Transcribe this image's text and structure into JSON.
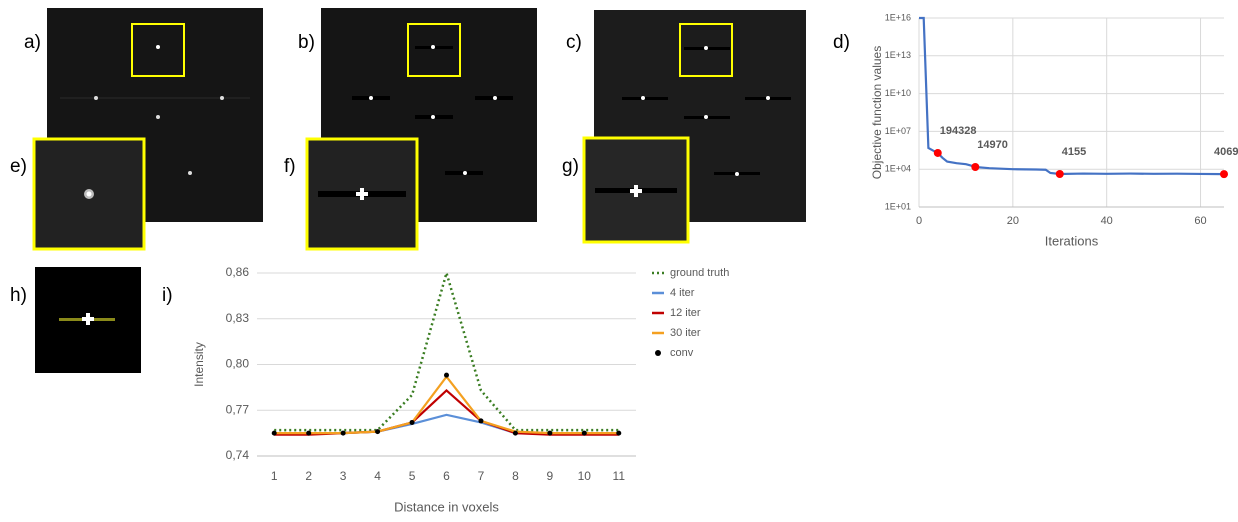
{
  "panels": {
    "labels": [
      "a)",
      "b)",
      "c)",
      "d)",
      "e)",
      "f)",
      "g)",
      "h)",
      "i)"
    ]
  },
  "chart_data": [
    {
      "type": "line",
      "y_log": true,
      "grid": true,
      "ylabel": "Objective function values",
      "xlabel": "Iterations",
      "xlim": [
        0,
        65
      ],
      "xticks": [
        0,
        20,
        40,
        60
      ],
      "ylim": [
        10,
        1e+16
      ],
      "yticks": [
        {
          "value": 10,
          "label": "1E+01"
        },
        {
          "value": 10000,
          "label": "1E+04"
        },
        {
          "value": 10000000,
          "label": "1E+07"
        },
        {
          "value": 10000000000,
          "label": "1E+10"
        },
        {
          "value": 10000000000000,
          "label": "1E+13"
        },
        {
          "value": 1e+16,
          "label": "1E+16"
        }
      ],
      "series": [
        {
          "color": "#4472c4",
          "style": "line",
          "x": [
            0,
            1,
            2,
            3,
            4,
            5,
            6,
            8,
            10,
            11,
            12,
            15,
            20,
            25,
            27,
            28,
            30,
            35,
            40,
            45,
            50,
            55,
            60,
            65
          ],
          "values": [
            1e+16,
            1e+16,
            480000,
            300000,
            194328,
            80000,
            40000,
            30000,
            25000,
            20000,
            14970,
            12000,
            10000,
            9500,
            9000,
            5000,
            4155,
            4500,
            4300,
            4500,
            4300,
            4400,
            4200,
            4069
          ]
        },
        {
          "color": "#ff0000",
          "style": "markers",
          "data_labels": true,
          "x": [
            4,
            12,
            30,
            65
          ],
          "values": [
            194328,
            14970,
            4155,
            4069
          ]
        }
      ]
    },
    {
      "type": "line",
      "grid": true,
      "ylabel": "Intensity",
      "xlabel": "Distance in voxels",
      "categories": [
        "1",
        "2",
        "3",
        "4",
        "5",
        "6",
        "7",
        "8",
        "9",
        "10",
        "11"
      ],
      "ylim": [
        0.74,
        0.86
      ],
      "yticks": [
        {
          "value": 0.74,
          "label": "0,74"
        },
        {
          "value": 0.77,
          "label": "0,77"
        },
        {
          "value": 0.8,
          "label": "0,80"
        },
        {
          "value": 0.83,
          "label": "0,83"
        },
        {
          "value": 0.86,
          "label": "0,86"
        }
      ],
      "series": [
        {
          "name": "ground truth",
          "color": "#3a7d22",
          "style": "dotted",
          "values": [
            0.757,
            0.757,
            0.757,
            0.757,
            0.78,
            0.86,
            0.783,
            0.757,
            0.757,
            0.757,
            0.757
          ]
        },
        {
          "name": "4 iter",
          "color": "#5b8fd8",
          "style": "line",
          "values": [
            0.755,
            0.755,
            0.755,
            0.756,
            0.761,
            0.767,
            0.762,
            0.755,
            0.755,
            0.755,
            0.755
          ]
        },
        {
          "name": "12 iter",
          "color": "#c00000",
          "style": "line",
          "values": [
            0.754,
            0.754,
            0.755,
            0.756,
            0.762,
            0.783,
            0.763,
            0.755,
            0.754,
            0.754,
            0.754
          ]
        },
        {
          "name": "30 iter",
          "color": "#f4a020",
          "style": "line",
          "values": [
            0.755,
            0.755,
            0.755,
            0.756,
            0.762,
            0.792,
            0.763,
            0.756,
            0.755,
            0.755,
            0.755
          ]
        },
        {
          "name": "conv",
          "color": "#000000",
          "style": "markers",
          "values": [
            0.755,
            0.755,
            0.755,
            0.756,
            0.762,
            0.793,
            0.763,
            0.755,
            0.755,
            0.755,
            0.755
          ]
        }
      ]
    }
  ]
}
